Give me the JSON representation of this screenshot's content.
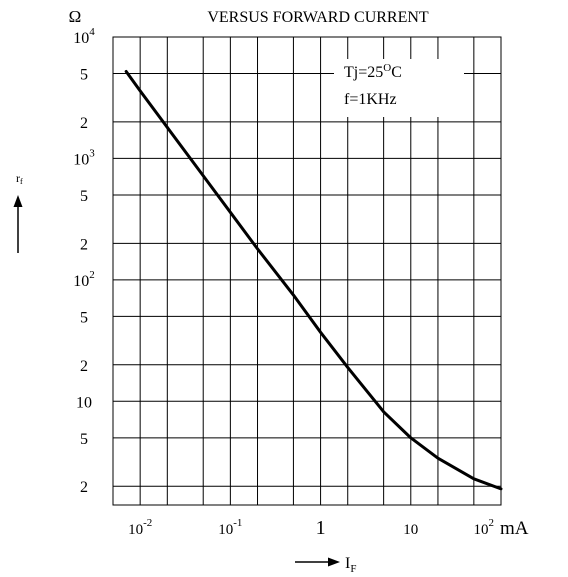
{
  "chart_data": {
    "type": "line",
    "title": "VERSUS FORWARD CURRENT",
    "x_scale": "log",
    "y_scale": "log",
    "xlim": [
      0.005,
      100
    ],
    "ylim": [
      1.4,
      10000
    ],
    "x_unit": "mA",
    "x_label": "I",
    "x_label_sub": "F",
    "y_unit": "Ω",
    "y_label": "r",
    "y_label_sub": "f",
    "x_ticks": [
      {
        "value": 0.01,
        "base": "10",
        "exp": "-2"
      },
      {
        "value": 0.1,
        "base": "10",
        "exp": "-1"
      },
      {
        "value": 1,
        "base": "1",
        "exp": ""
      },
      {
        "value": 10,
        "base": "10",
        "exp": ""
      },
      {
        "value": 100,
        "base": "10",
        "exp": "2"
      }
    ],
    "y_ticks": [
      {
        "value": 10000,
        "base": "10",
        "exp": "4"
      },
      {
        "value": 5000,
        "base": "5",
        "exp": ""
      },
      {
        "value": 2000,
        "base": "2",
        "exp": ""
      },
      {
        "value": 1000,
        "base": "10",
        "exp": "3"
      },
      {
        "value": 500,
        "base": "5",
        "exp": ""
      },
      {
        "value": 200,
        "base": "2",
        "exp": ""
      },
      {
        "value": 100,
        "base": "10",
        "exp": "2"
      },
      {
        "value": 50,
        "base": "5",
        "exp": ""
      },
      {
        "value": 20,
        "base": "2",
        "exp": ""
      },
      {
        "value": 10,
        "base": "10",
        "exp": ""
      },
      {
        "value": 5,
        "base": "5",
        "exp": ""
      },
      {
        "value": 2,
        "base": "2",
        "exp": ""
      }
    ],
    "x_gridlines": [
      0.01,
      0.02,
      0.05,
      0.1,
      0.2,
      0.5,
      1,
      2,
      5,
      10,
      20,
      50
    ],
    "y_gridlines": [
      5000,
      2000,
      1000,
      500,
      200,
      100,
      50,
      20,
      10,
      5,
      2
    ],
    "grid": true,
    "legend_position": "top-right",
    "annotation": {
      "line1_prefix": "Tj=25",
      "line1_sup": "O",
      "line1_suffix": "C",
      "line2": "f=1KHz"
    },
    "series": [
      {
        "x": [
          0.007,
          0.01,
          0.02,
          0.05,
          0.1,
          0.2,
          0.5,
          1,
          2,
          5,
          10,
          20,
          50,
          100
        ],
        "y": [
          5200,
          3600,
          1800,
          720,
          360,
          180,
          75,
          37,
          19,
          8.2,
          5.0,
          3.4,
          2.3,
          1.9
        ]
      }
    ]
  }
}
